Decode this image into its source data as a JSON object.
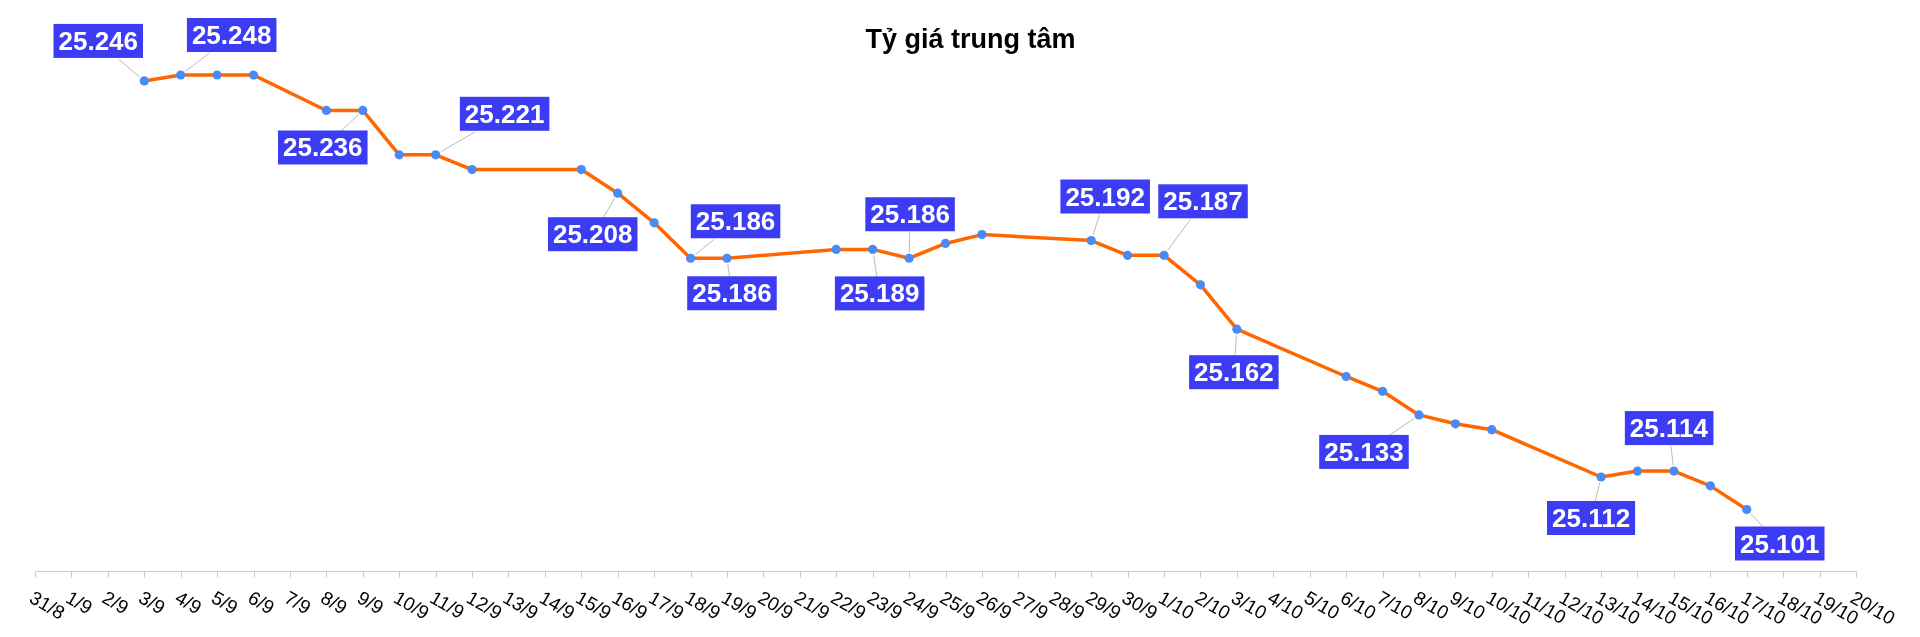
{
  "chart_data": {
    "type": "line",
    "title": "Tỷ giá trung tâm",
    "x": [
      "--09-03",
      "--09-04",
      "--09-05",
      "--09-06",
      "--09-08",
      "--09-09",
      "--09-10",
      "--09-11",
      "--09-12",
      "--09-15",
      "--09-16",
      "--09-17",
      "--09-18",
      "--09-19",
      "--09-22",
      "--09-23",
      "--09-24",
      "--09-25",
      "--09-26",
      "--09-29",
      "--09-30",
      "--10-01",
      "--10-02",
      "--10-03",
      "--10-06",
      "--10-07",
      "--10-08",
      "--10-09",
      "--10-10",
      "--10-13",
      "--10-14",
      "--10-15",
      "--10-16",
      "--10-17"
    ],
    "values": [
      25.246,
      25.248,
      25.248,
      25.248,
      25.236,
      25.236,
      25.221,
      25.221,
      25.216,
      25.216,
      25.208,
      25.198,
      25.186,
      25.186,
      25.189,
      25.189,
      25.186,
      25.191,
      25.194,
      25.192,
      25.187,
      25.187,
      25.177,
      25.162,
      25.146,
      25.141,
      25.133,
      25.13,
      25.128,
      25.112,
      25.114,
      25.114,
      25.109,
      25.101
    ],
    "value_labels": [
      "25.246",
      "25.248",
      null,
      null,
      null,
      "25.236",
      null,
      "25.221",
      null,
      null,
      "25.208",
      null,
      "25.186",
      "25.186",
      null,
      "25.189",
      "25.186",
      null,
      null,
      "25.192",
      null,
      "25.187",
      null,
      "25.162",
      null,
      null,
      "25.133",
      null,
      null,
      "25.112",
      null,
      "25.114",
      null,
      "25.101"
    ],
    "color": "#ff6600",
    "marker": "circle",
    "line_style": "solid",
    "tick_labels": "x",
    "xlim": [
      "--08-31",
      "--10-20"
    ],
    "xticks": [
      {
        "value": "--08-31",
        "label": "31/8"
      },
      {
        "value": "--09-01",
        "label": "1/9"
      },
      {
        "value": "--09-02",
        "label": "2/9"
      },
      {
        "value": "--09-03",
        "label": "3/9"
      },
      {
        "value": "--09-04",
        "label": "4/9"
      },
      {
        "value": "--09-05",
        "label": "5/9"
      },
      {
        "value": "--09-06",
        "label": "6/9"
      },
      {
        "value": "--09-07",
        "label": "7/9"
      },
      {
        "value": "--09-08",
        "label": "8/9"
      },
      {
        "value": "--09-09",
        "label": "9/9"
      },
      {
        "value": "--09-10",
        "label": "10/9"
      },
      {
        "value": "--09-11",
        "label": "11/9"
      },
      {
        "value": "--09-12",
        "label": "12/9"
      },
      {
        "value": "--09-13",
        "label": "13/9"
      },
      {
        "value": "--09-14",
        "label": "14/9"
      },
      {
        "value": "--09-15",
        "label": "15/9"
      },
      {
        "value": "--09-16",
        "label": "16/9"
      },
      {
        "value": "--09-17",
        "label": "17/9"
      },
      {
        "value": "--09-18",
        "label": "18/9"
      },
      {
        "value": "--09-19",
        "label": "19/9"
      },
      {
        "value": "--09-20",
        "label": "20/9"
      },
      {
        "value": "--09-21",
        "label": "21/9"
      },
      {
        "value": "--09-22",
        "label": "22/9"
      },
      {
        "value": "--09-23",
        "label": "23/9"
      },
      {
        "value": "--09-24",
        "label": "24/9"
      },
      {
        "value": "--09-25",
        "label": "25/9"
      },
      {
        "value": "--09-26",
        "label": "26/9"
      },
      {
        "value": "--09-27",
        "label": "27/9"
      },
      {
        "value": "--09-28",
        "label": "28/9"
      },
      {
        "value": "--09-29",
        "label": "29/9"
      },
      {
        "value": "--09-30",
        "label": "30/9"
      },
      {
        "value": "--10-01",
        "label": "1/10"
      },
      {
        "value": "--10-02",
        "label": "2/10"
      },
      {
        "value": "--10-03",
        "label": "3/10"
      },
      {
        "value": "--10-04",
        "label": "4/10"
      },
      {
        "value": "--10-05",
        "label": "5/10"
      },
      {
        "value": "--10-06",
        "label": "6/10"
      },
      {
        "value": "--10-07",
        "label": "7/10"
      },
      {
        "value": "--10-08",
        "label": "8/10"
      },
      {
        "value": "--10-09",
        "label": "9/10"
      },
      {
        "value": "--10-10",
        "label": "10/10"
      },
      {
        "value": "--10-11",
        "label": "11/10"
      },
      {
        "value": "--10-12",
        "label": "12/10"
      },
      {
        "value": "--10-13",
        "label": "13/10"
      },
      {
        "value": "--10-14",
        "label": "14/10"
      },
      {
        "value": "--10-15",
        "label": "15/10"
      },
      {
        "value": "--10-16",
        "label": "16/10"
      },
      {
        "value": "--10-17",
        "label": "17/10"
      },
      {
        "value": "--10-18",
        "label": "18/10"
      },
      {
        "value": "--10-19",
        "label": "19/10"
      },
      {
        "value": "--10-20",
        "label": "20/10"
      }
    ]
  }
}
